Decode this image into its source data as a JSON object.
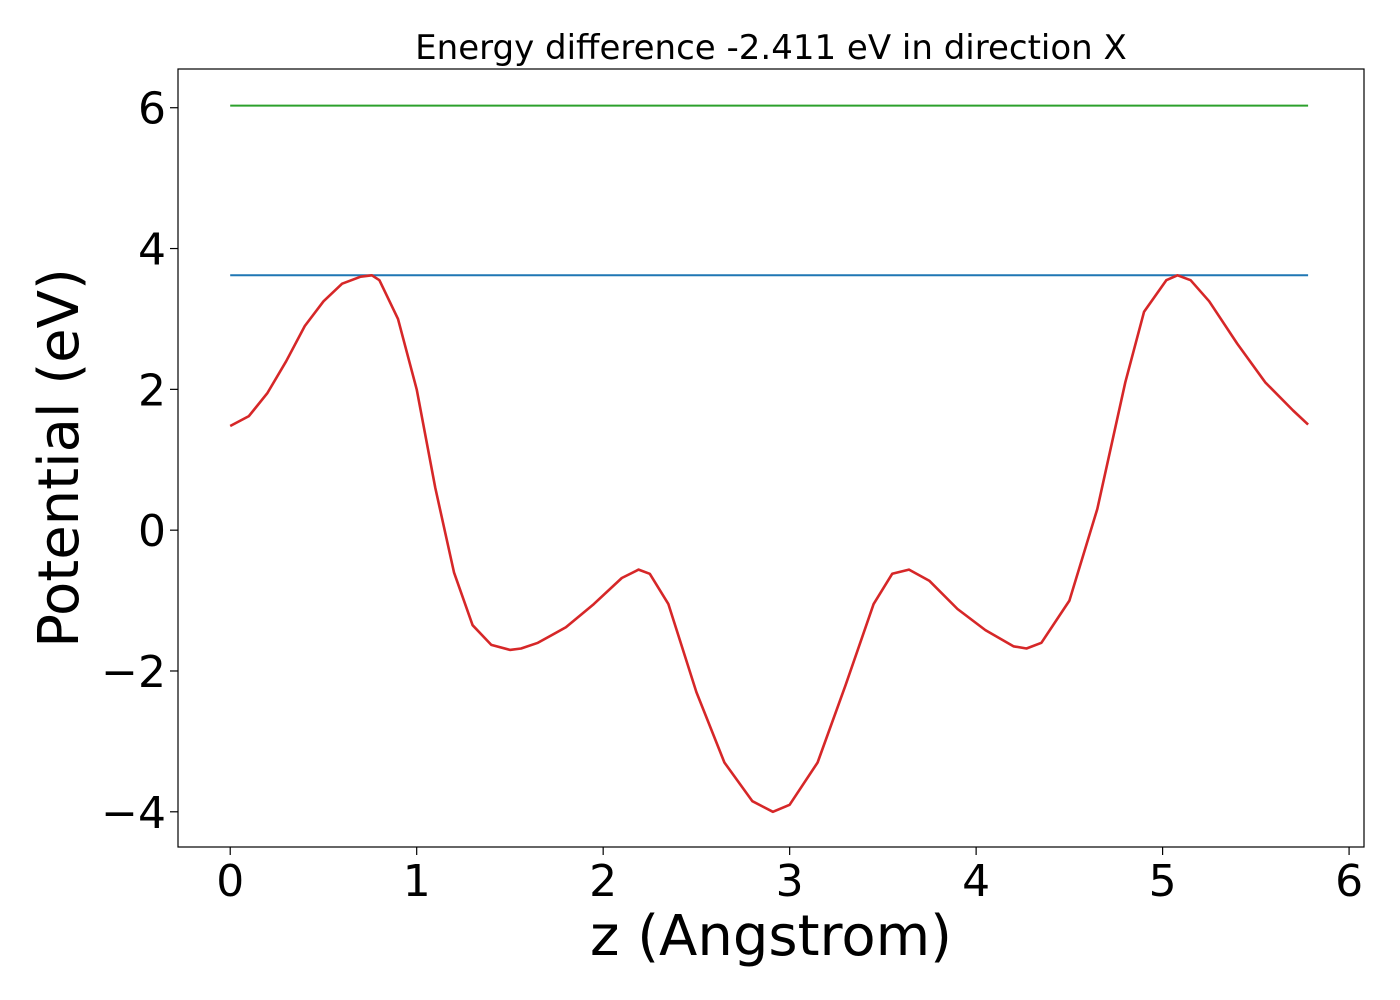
{
  "chart_data": {
    "type": "line",
    "title": "Energy difference -2.411 eV in direction X",
    "xlabel": "z (Angstrom)",
    "ylabel": "Potential (eV)",
    "xlim": [
      -0.28,
      6.08
    ],
    "ylim": [
      -4.5,
      6.55
    ],
    "xticks": [
      0,
      1,
      2,
      3,
      4,
      5,
      6
    ],
    "yticks": [
      -4,
      -2,
      0,
      2,
      4,
      6
    ],
    "xtick_labels": [
      "0",
      "1",
      "2",
      "3",
      "4",
      "5",
      "6"
    ],
    "ytick_labels": [
      "−4",
      "−2",
      "0",
      "2",
      "4",
      "6"
    ],
    "grid": false,
    "series": [
      {
        "color": "#2ca02c",
        "x": [
          0,
          5.78
        ],
        "y": [
          6.03,
          6.03
        ]
      },
      {
        "color": "#1f77b4",
        "x": [
          0,
          5.78
        ],
        "y": [
          3.62,
          3.62
        ]
      },
      {
        "color": "#d62728",
        "x": [
          0,
          0.1,
          0.2,
          0.3,
          0.4,
          0.5,
          0.6,
          0.7,
          0.76,
          0.8,
          0.9,
          1.0,
          1.1,
          1.2,
          1.3,
          1.4,
          1.5,
          1.56,
          1.65,
          1.8,
          1.95,
          2.1,
          2.19,
          2.25,
          2.35,
          2.5,
          2.65,
          2.8,
          2.91,
          3.0,
          3.15,
          3.3,
          3.45,
          3.55,
          3.64,
          3.75,
          3.9,
          4.05,
          4.2,
          4.27,
          4.35,
          4.5,
          4.65,
          4.8,
          4.9,
          5.02,
          5.08,
          5.15,
          5.25,
          5.4,
          5.55,
          5.7,
          5.78
        ],
        "y": [
          1.48,
          1.62,
          1.95,
          2.4,
          2.9,
          3.25,
          3.5,
          3.6,
          3.62,
          3.55,
          3.0,
          2.0,
          0.6,
          -0.6,
          -1.35,
          -1.63,
          -1.7,
          -1.68,
          -1.6,
          -1.38,
          -1.05,
          -0.68,
          -0.56,
          -0.62,
          -1.05,
          -2.3,
          -3.3,
          -3.85,
          -4.0,
          -3.9,
          -3.3,
          -2.2,
          -1.05,
          -0.62,
          -0.56,
          -0.72,
          -1.12,
          -1.42,
          -1.65,
          -1.68,
          -1.6,
          -1.0,
          0.3,
          2.1,
          3.1,
          3.55,
          3.62,
          3.55,
          3.25,
          2.65,
          2.1,
          1.7,
          1.5
        ]
      }
    ]
  }
}
